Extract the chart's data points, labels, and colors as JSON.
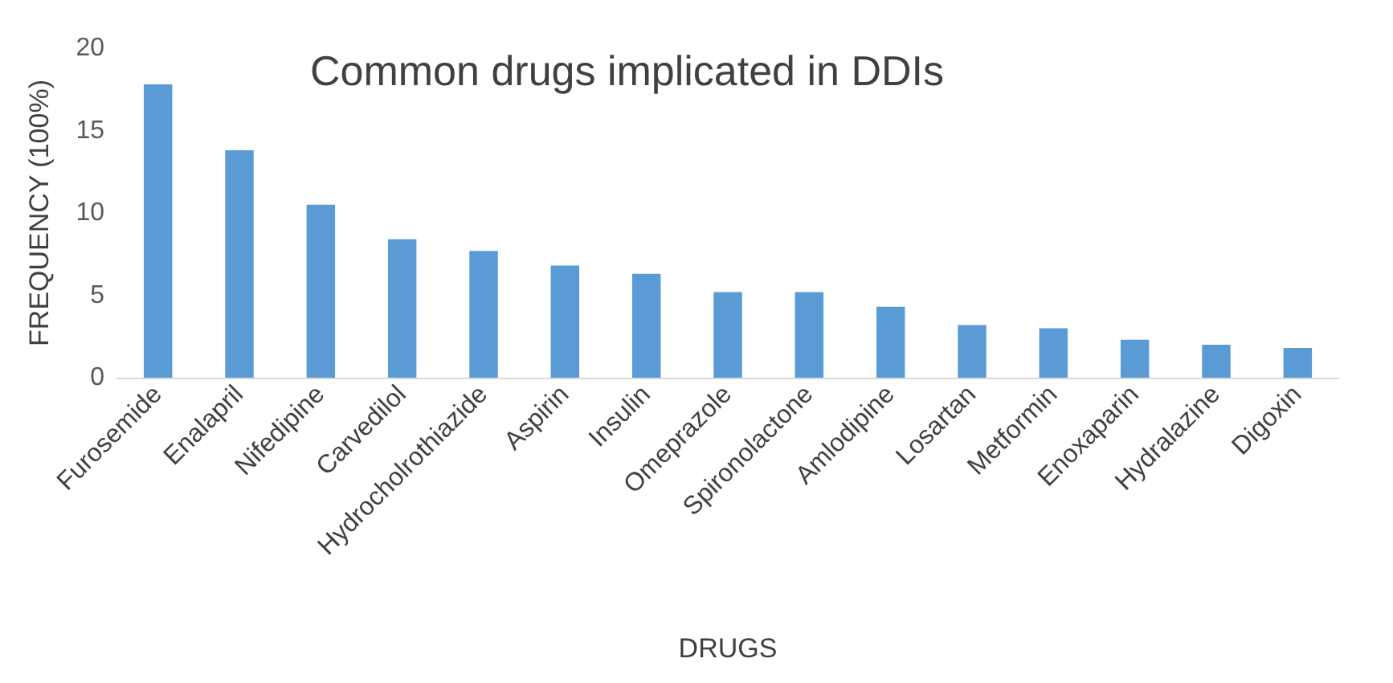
{
  "chart_data": {
    "type": "bar",
    "title": "Common drugs implicated in DDIs",
    "xlabel": "DRUGS",
    "ylabel": "FREQUENCY (100%)",
    "categories": [
      "Furosemide",
      "Enalapril",
      "Nifedipine",
      "Carvedilol",
      "Hydrocholrothiazide",
      "Aspirin",
      "Insulin",
      "Omeprazole",
      "Spironolactone",
      "Amlodipine",
      "Losartan",
      "Metformin",
      "Enoxaparin",
      "Hydralazine",
      "Digoxin"
    ],
    "values": [
      17.8,
      13.8,
      10.5,
      8.4,
      7.7,
      6.8,
      6.3,
      5.2,
      5.2,
      4.3,
      3.2,
      3.0,
      2.3,
      2.0,
      1.8
    ],
    "color": "#5b9bd5",
    "ylim": [
      0,
      20
    ],
    "yticks": [
      0,
      5,
      10,
      15,
      20
    ],
    "grid": false
  }
}
